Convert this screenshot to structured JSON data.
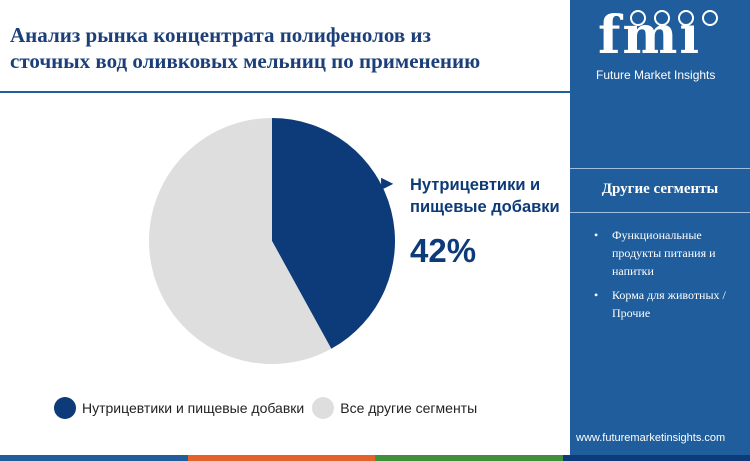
{
  "title": {
    "line1": "Анализ рынка концентрата полифенолов из",
    "line2": "сточных вод оливковых мельниц по применению"
  },
  "chart_data": {
    "type": "pie",
    "series": [
      {
        "label": "Нутрицевтики и пищевые добавки",
        "value": 42,
        "color": "#0d3a78"
      },
      {
        "label": "Все другие сегменты",
        "value": 58,
        "color": "#dedede"
      }
    ],
    "callout": {
      "label_line1": "Нутрицевтики и",
      "label_line2": "пищевые добавки",
      "value": "42%"
    },
    "legend": [
      {
        "label": "Нутрицевтики и пищевые добавки",
        "color": "#0d3a78"
      },
      {
        "label": "Все другие сегменты",
        "color": "#dedede"
      }
    ]
  },
  "sidebar": {
    "logo_text": "fmi",
    "logo_subtitle": "Future Market Insights",
    "heading": "Другие сегменты",
    "items": [
      "Функциональные продукты питания и напитки",
      "Корма для животных / Прочие"
    ],
    "website": "www.futuremarketinsights.com"
  },
  "colors": {
    "sidebar_bg": "#1f5d9c",
    "title": "#1c3f7a",
    "accent": "#0d3a78",
    "bottom_bar": [
      "#1f5d9c",
      "#e2622a",
      "#3f8f3b",
      "#0d3a78"
    ]
  }
}
